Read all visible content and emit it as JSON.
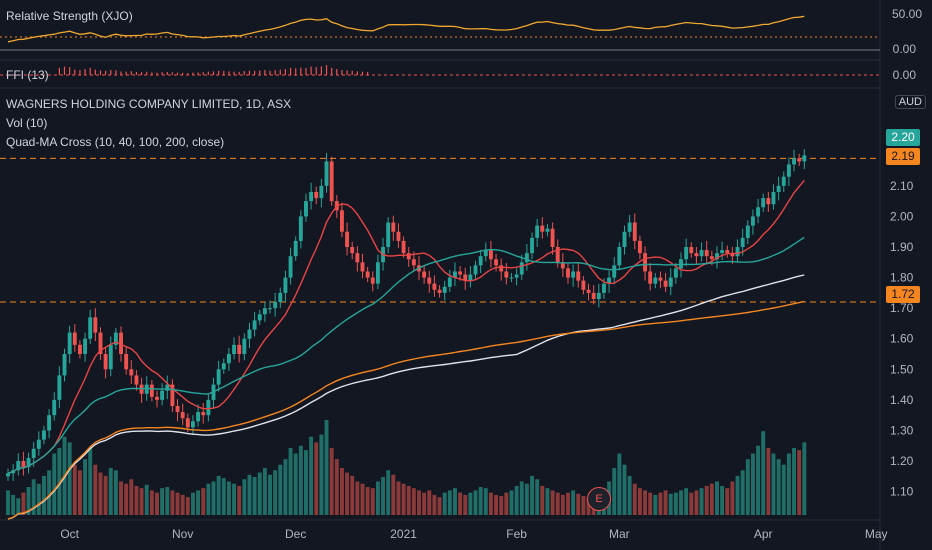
{
  "colors": {
    "background": "#131722",
    "up": "#26a69a",
    "down": "#ef5350",
    "vol_up": "#1f6f68",
    "vol_down": "#8b3a3a",
    "ma10": "#e84444",
    "ma40": "#26a69a",
    "ma100": "#e0e3eb",
    "ma200": "#f5861f",
    "rs_line": "#f0a830",
    "level_line": "#f5861f",
    "price_tag_last": "#26a69a"
  },
  "header": {
    "symbol_title": "WAGNERS HOLDING COMPANY LIMITED, 1D, ASX",
    "currency_badge": "AUD",
    "vol_label": "Vol (10)",
    "ma_label": "Quad-MA Cross (10, 40, 100, 200, close)",
    "rs_label": "Relative Strength (XJO)",
    "ffi_label": "FFI (13)",
    "earnings_marker": "E"
  },
  "price_tags": {
    "last": "2.20",
    "level_high": "2.19",
    "level_low": "1.72"
  },
  "rs_axis": [
    "50.00",
    "0.00"
  ],
  "ffi_axis": [
    "0.00"
  ],
  "chart_data": {
    "type": "candlestick",
    "title": "WAGNERS HOLDING COMPANY LIMITED, 1D, ASX",
    "ylim": [
      1.03,
      2.25
    ],
    "y_ticks": [
      "2.10",
      "2.00",
      "1.90",
      "1.80",
      "1.70",
      "1.60",
      "1.50",
      "1.40",
      "1.30",
      "1.20",
      "1.10"
    ],
    "x_ticks": [
      {
        "label": "Oct",
        "index": 12
      },
      {
        "label": "Nov",
        "index": 34
      },
      {
        "label": "Dec",
        "index": 56
      },
      {
        "label": "2021",
        "index": 77
      },
      {
        "label": "Feb",
        "index": 99
      },
      {
        "label": "Mar",
        "index": 119
      },
      {
        "label": "Apr",
        "index": 147
      },
      {
        "label": "May",
        "index": 169
      }
    ],
    "horizontal_levels": [
      2.19,
      1.72
    ],
    "close": [
      1.16,
      1.17,
      1.2,
      1.18,
      1.21,
      1.24,
      1.27,
      1.3,
      1.35,
      1.4,
      1.48,
      1.55,
      1.62,
      1.58,
      1.55,
      1.6,
      1.67,
      1.62,
      1.55,
      1.5,
      1.58,
      1.62,
      1.55,
      1.5,
      1.48,
      1.45,
      1.42,
      1.45,
      1.41,
      1.4,
      1.43,
      1.45,
      1.38,
      1.36,
      1.34,
      1.31,
      1.33,
      1.36,
      1.35,
      1.4,
      1.45,
      1.5,
      1.52,
      1.55,
      1.58,
      1.55,
      1.6,
      1.63,
      1.66,
      1.68,
      1.7,
      1.7,
      1.72,
      1.75,
      1.8,
      1.87,
      1.92,
      2.0,
      2.05,
      2.08,
      2.06,
      2.1,
      2.18,
      2.05,
      2.02,
      1.95,
      1.9,
      1.88,
      1.85,
      1.82,
      1.8,
      1.78,
      1.85,
      1.9,
      1.98,
      1.95,
      1.92,
      1.88,
      1.86,
      1.84,
      1.82,
      1.8,
      1.78,
      1.76,
      1.75,
      1.77,
      1.8,
      1.82,
      1.81,
      1.79,
      1.81,
      1.84,
      1.87,
      1.89,
      1.86,
      1.84,
      1.82,
      1.8,
      1.8,
      1.81,
      1.85,
      1.88,
      1.93,
      1.97,
      1.95,
      1.96,
      1.9,
      1.85,
      1.83,
      1.8,
      1.82,
      1.79,
      1.76,
      1.75,
      1.73,
      1.75,
      1.78,
      1.8,
      1.84,
      1.9,
      1.95,
      1.98,
      1.92,
      1.88,
      1.82,
      1.78,
      1.8,
      1.79,
      1.77,
      1.8,
      1.83,
      1.86,
      1.9,
      1.88,
      1.87,
      1.89,
      1.87,
      1.86,
      1.88,
      1.89,
      1.88,
      1.87,
      1.9,
      1.93,
      1.97,
      2.0,
      2.03,
      2.06,
      2.04,
      2.08,
      2.1,
      2.13,
      2.17,
      2.19,
      2.18,
      2.2
    ],
    "volume": [
      0.22,
      0.18,
      0.15,
      0.2,
      0.25,
      0.32,
      0.28,
      0.35,
      0.4,
      0.55,
      0.6,
      0.7,
      0.65,
      0.45,
      0.4,
      0.5,
      0.6,
      0.45,
      0.38,
      0.35,
      0.42,
      0.4,
      0.3,
      0.28,
      0.32,
      0.26,
      0.24,
      0.27,
      0.22,
      0.2,
      0.24,
      0.25,
      0.22,
      0.2,
      0.18,
      0.16,
      0.2,
      0.22,
      0.24,
      0.28,
      0.3,
      0.35,
      0.33,
      0.3,
      0.28,
      0.26,
      0.32,
      0.36,
      0.34,
      0.38,
      0.42,
      0.36,
      0.4,
      0.45,
      0.5,
      0.6,
      0.55,
      0.62,
      0.58,
      0.7,
      0.65,
      0.72,
      0.85,
      0.6,
      0.5,
      0.42,
      0.38,
      0.35,
      0.3,
      0.28,
      0.25,
      0.24,
      0.3,
      0.34,
      0.4,
      0.36,
      0.3,
      0.28,
      0.26,
      0.24,
      0.22,
      0.2,
      0.22,
      0.18,
      0.16,
      0.2,
      0.22,
      0.24,
      0.2,
      0.18,
      0.2,
      0.22,
      0.25,
      0.24,
      0.2,
      0.18,
      0.17,
      0.2,
      0.22,
      0.26,
      0.3,
      0.28,
      0.35,
      0.32,
      0.26,
      0.24,
      0.22,
      0.2,
      0.18,
      0.2,
      0.22,
      0.19,
      0.17,
      0.16,
      0.18,
      0.2,
      0.24,
      0.3,
      0.42,
      0.55,
      0.45,
      0.35,
      0.28,
      0.24,
      0.22,
      0.2,
      0.18,
      0.2,
      0.22,
      0.19,
      0.2,
      0.22,
      0.24,
      0.2,
      0.22,
      0.24,
      0.26,
      0.28,
      0.3,
      0.26,
      0.24,
      0.3,
      0.35,
      0.4,
      0.5,
      0.55,
      0.62,
      0.75,
      0.6,
      0.55,
      0.5,
      0.45,
      0.55,
      0.6,
      0.58,
      0.65
    ],
    "series_overlays": [
      {
        "name": "MA 10",
        "period": 10
      },
      {
        "name": "MA 40",
        "period": 40
      },
      {
        "name": "MA 100",
        "period": 100
      },
      {
        "name": "MA 200",
        "period": 200
      }
    ]
  }
}
